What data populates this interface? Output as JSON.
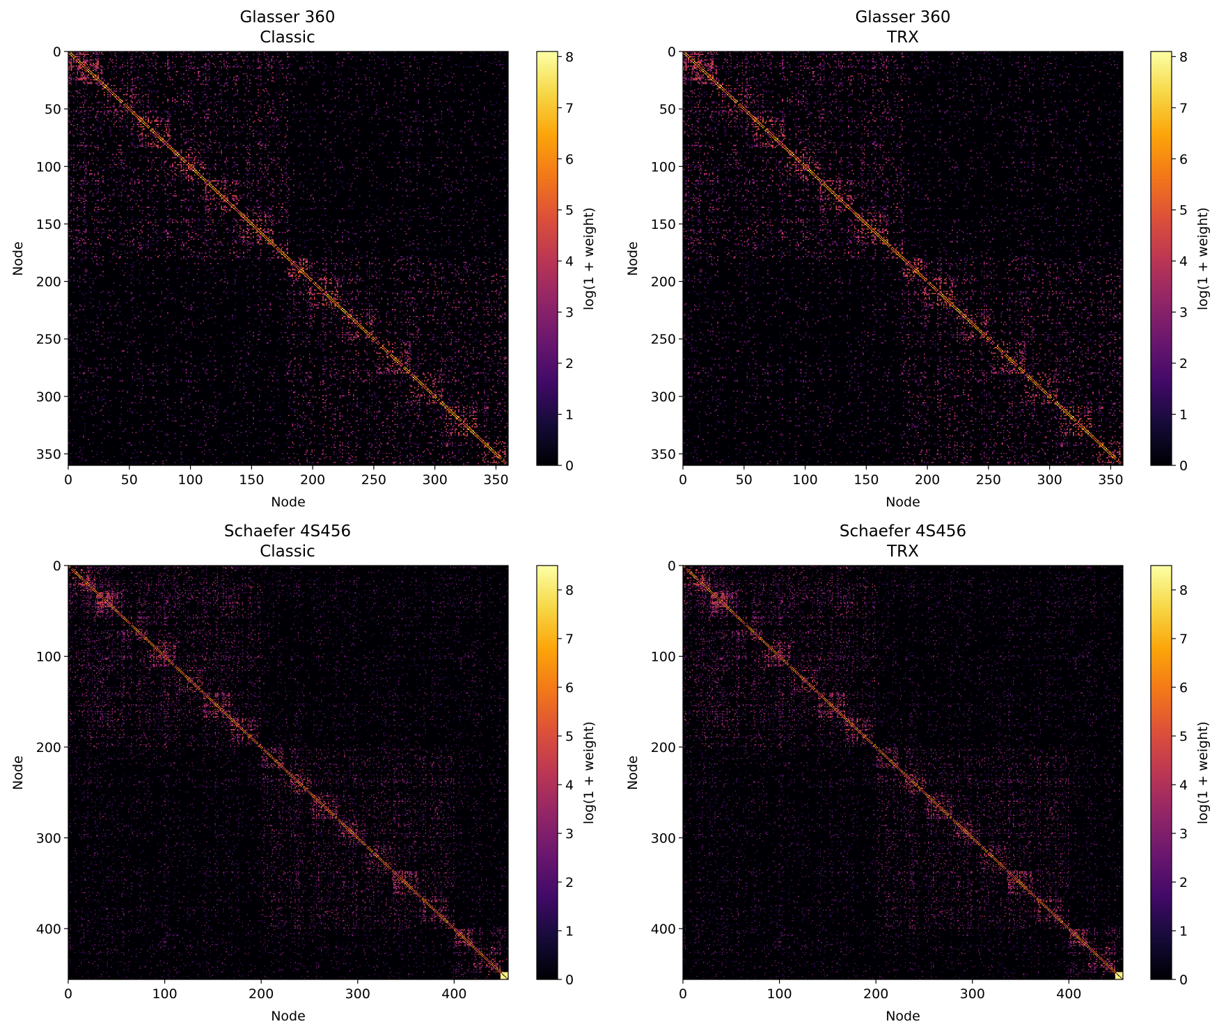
{
  "chart_data": [
    {
      "type": "heatmap",
      "title": "Glasser 360",
      "subtitle": "Classic",
      "xlabel": "Node",
      "ylabel": "Node",
      "n": 360,
      "xlim": [
        0,
        360
      ],
      "ylim": [
        360,
        0
      ],
      "xticks": [
        0,
        50,
        100,
        150,
        200,
        250,
        300,
        350
      ],
      "yticks": [
        0,
        50,
        100,
        150,
        200,
        250,
        300,
        350
      ],
      "colorbar": {
        "label": "log(1 + weight)",
        "min": 0,
        "max": 8.1,
        "ticks": [
          0,
          1,
          2,
          3,
          4,
          5,
          6,
          7,
          8
        ],
        "colormap": "inferno"
      },
      "modules": [
        [
          0,
          180
        ],
        [
          180,
          360
        ]
      ],
      "seed": 11
    },
    {
      "type": "heatmap",
      "title": "Glasser 360",
      "subtitle": "TRX",
      "xlabel": "Node",
      "ylabel": "Node",
      "n": 360,
      "xlim": [
        0,
        360
      ],
      "ylim": [
        360,
        0
      ],
      "xticks": [
        0,
        50,
        100,
        150,
        200,
        250,
        300,
        350
      ],
      "yticks": [
        0,
        50,
        100,
        150,
        200,
        250,
        300,
        350
      ],
      "colorbar": {
        "label": "log(1 + weight)",
        "min": 0,
        "max": 8.1,
        "ticks": [
          0,
          1,
          2,
          3,
          4,
          5,
          6,
          7,
          8
        ],
        "colormap": "inferno"
      },
      "modules": [
        [
          0,
          180
        ],
        [
          180,
          360
        ]
      ],
      "seed": 11
    },
    {
      "type": "heatmap",
      "title": "Schaefer 4S456",
      "subtitle": "Classic",
      "xlabel": "Node",
      "ylabel": "Node",
      "n": 456,
      "xlim": [
        0,
        456
      ],
      "ylim": [
        456,
        0
      ],
      "xticks": [
        0,
        100,
        200,
        300,
        400
      ],
      "yticks": [
        0,
        100,
        200,
        300,
        400
      ],
      "colorbar": {
        "label": "log(1 + weight)",
        "min": 0,
        "max": 8.5,
        "ticks": [
          0,
          1,
          2,
          3,
          4,
          5,
          6,
          7,
          8
        ],
        "colormap": "inferno"
      },
      "modules": [
        [
          0,
          200
        ],
        [
          200,
          400
        ],
        [
          400,
          456
        ]
      ],
      "seed": 23
    },
    {
      "type": "heatmap",
      "title": "Schaefer 4S456",
      "subtitle": "TRX",
      "xlabel": "Node",
      "ylabel": "Node",
      "n": 456,
      "xlim": [
        0,
        456
      ],
      "ylim": [
        456,
        0
      ],
      "xticks": [
        0,
        100,
        200,
        300,
        400
      ],
      "yticks": [
        0,
        100,
        200,
        300,
        400
      ],
      "colorbar": {
        "label": "log(1 + weight)",
        "min": 0,
        "max": 8.5,
        "ticks": [
          0,
          1,
          2,
          3,
          4,
          5,
          6,
          7,
          8
        ],
        "colormap": "inferno"
      },
      "modules": [
        [
          0,
          200
        ],
        [
          200,
          400
        ],
        [
          400,
          456
        ]
      ],
      "seed": 23
    }
  ]
}
